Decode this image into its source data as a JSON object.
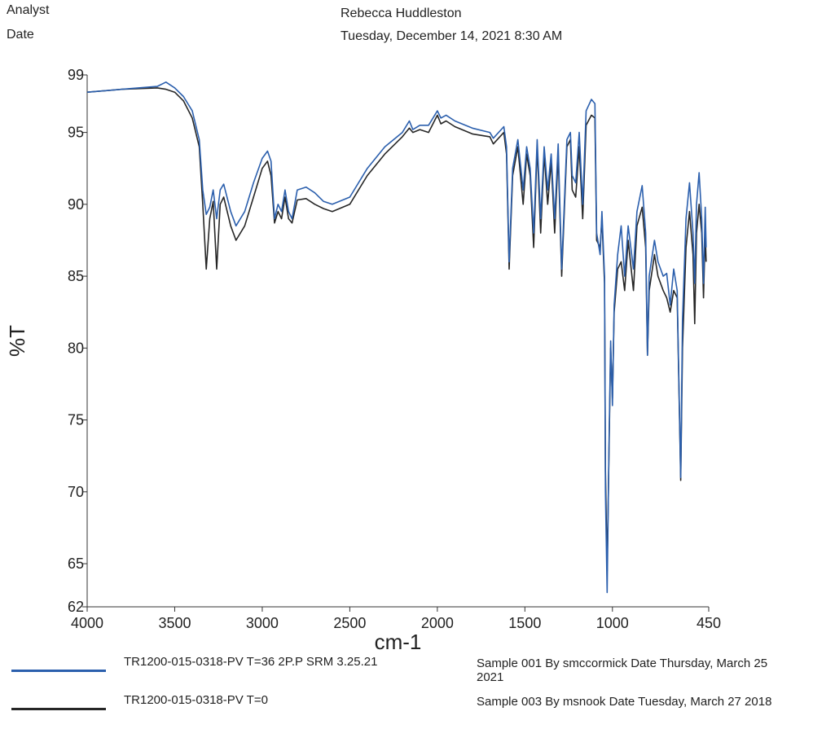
{
  "header": {
    "analyst_label": "Analyst",
    "analyst": "Rebecca Huddleston",
    "date_label": "Date",
    "date": "Tuesday, December 14, 2021 8:30 AM"
  },
  "chart_data": {
    "type": "line",
    "xlabel": "cm-1",
    "ylabel": "%T",
    "xlim": [
      4000,
      450
    ],
    "ylim": [
      62,
      99
    ],
    "xticks": [
      4000,
      3500,
      3000,
      2500,
      2000,
      1500,
      1000,
      450
    ],
    "yticks": [
      99,
      95,
      90,
      85,
      80,
      75,
      70,
      65,
      62
    ],
    "x": [
      4000,
      3800,
      3600,
      3550,
      3500,
      3450,
      3400,
      3360,
      3340,
      3320,
      3300,
      3280,
      3260,
      3240,
      3220,
      3180,
      3150,
      3100,
      3050,
      3000,
      2970,
      2950,
      2930,
      2910,
      2890,
      2870,
      2850,
      2830,
      2800,
      2750,
      2700,
      2650,
      2600,
      2500,
      2400,
      2300,
      2200,
      2160,
      2140,
      2100,
      2050,
      2000,
      1980,
      1950,
      1900,
      1800,
      1700,
      1680,
      1620,
      1605,
      1590,
      1570,
      1540,
      1510,
      1490,
      1470,
      1450,
      1430,
      1410,
      1390,
      1370,
      1350,
      1330,
      1310,
      1290,
      1260,
      1240,
      1230,
      1210,
      1190,
      1170,
      1150,
      1120,
      1100,
      1090,
      1070,
      1060,
      1045,
      1040,
      1030,
      1020,
      1010,
      1000,
      990,
      970,
      950,
      930,
      910,
      880,
      860,
      830,
      810,
      800,
      790,
      760,
      740,
      710,
      690,
      670,
      650,
      630,
      610,
      600,
      580,
      560,
      540,
      530,
      520,
      505,
      490,
      480,
      470,
      465
    ],
    "series": [
      {
        "name": "TR1200-015-0318-PV T=36 2P.P SRM 3.25.21",
        "description": "Sample 001 By smccormick Date Thursday, March 25 2021",
        "color": "#2b5fad",
        "values": [
          97.8,
          98.0,
          98.2,
          98.5,
          98.1,
          97.5,
          96.5,
          94.5,
          91,
          89.3,
          89.8,
          91,
          89,
          91,
          91.4,
          89.5,
          88.5,
          89.5,
          91.5,
          93.2,
          93.7,
          93,
          89,
          90,
          89.5,
          91,
          89.5,
          89,
          91,
          91.2,
          90.8,
          90.2,
          90,
          90.5,
          92.5,
          94,
          95,
          95.8,
          95.2,
          95.5,
          95.5,
          96.5,
          96,
          96.2,
          95.8,
          95.3,
          95,
          94.6,
          95.4,
          94,
          86,
          92.5,
          94.5,
          91,
          94,
          92.5,
          88,
          94.5,
          89,
          94,
          91,
          93.5,
          89,
          94.2,
          85.5,
          94.5,
          95,
          92,
          91.5,
          95,
          90,
          96.5,
          97.3,
          97,
          88,
          86.5,
          89.5,
          85,
          70,
          63,
          73,
          80.5,
          76,
          83,
          86.5,
          88.5,
          85,
          88.5,
          85.5,
          89.5,
          91.3,
          88,
          79.5,
          85,
          87.5,
          86,
          85,
          85.2,
          83,
          85.5,
          84,
          71,
          82,
          89,
          91.5,
          88,
          84.5,
          90,
          92.2,
          89,
          84.5,
          89.8,
          87
        ]
      },
      {
        "name": "TR1200-015-0318-PV T=0",
        "description": "Sample 003 By msnook Date Tuesday, March 27 2018",
        "color": "#262626",
        "values": [
          97.8,
          98.0,
          98.1,
          98.0,
          97.8,
          97.2,
          96.0,
          94.0,
          90,
          85.5,
          89,
          90.2,
          85.5,
          90,
          90.5,
          88.5,
          87.5,
          88.5,
          90.5,
          92.5,
          93,
          92,
          88.7,
          89.5,
          89,
          90.5,
          89,
          88.7,
          90.3,
          90.4,
          90,
          89.7,
          89.5,
          90,
          92,
          93.5,
          94.7,
          95.3,
          95,
          95.2,
          95,
          96.2,
          95.6,
          95.8,
          95.4,
          94.9,
          94.7,
          94.2,
          95,
          93.5,
          85.5,
          92,
          94,
          90,
          93.5,
          92,
          87,
          94,
          88,
          93.5,
          90,
          93,
          88,
          93.5,
          85,
          94,
          94.5,
          91,
          90.5,
          94,
          89,
          95.5,
          96.2,
          96,
          87.5,
          87,
          89,
          84.5,
          71.5,
          64.5,
          72.5,
          80,
          76.5,
          82.5,
          85.5,
          86,
          84,
          87.5,
          84,
          88.5,
          89.8,
          87,
          79.5,
          84,
          86.5,
          85,
          84,
          83.5,
          82.5,
          84,
          83.5,
          70.8,
          80,
          87,
          89.5,
          86.5,
          81.7,
          88,
          90,
          88,
          83.5,
          88,
          86
        ]
      }
    ]
  }
}
